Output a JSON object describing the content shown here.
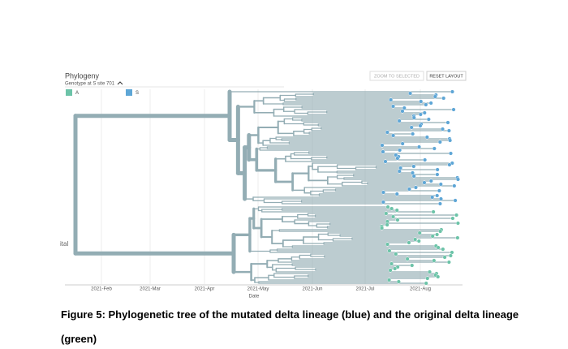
{
  "panel": {
    "title": "Phylogeny",
    "color_by": "Genotype at S site 701",
    "legend": [
      {
        "label": "A",
        "color": "#6cc3a8"
      },
      {
        "label": "S",
        "color": "#5ea6d6"
      }
    ],
    "buttons": [
      "ZOOM TO SELECTED",
      "RESET LAYOUT"
    ],
    "root_label": "ital",
    "x_ticks": [
      "2021-Feb",
      "2021-Mar",
      "2021-Apr",
      "2021-May",
      "2021-Jun",
      "2021-Jul",
      "2021-Aug"
    ],
    "x_axis_label": "Date"
  },
  "caption": {
    "line1": "Figure 5: Phylogenetic tree of the mutated delta lineage (blue) and the original delta lineage",
    "line2": "(green)"
  }
}
